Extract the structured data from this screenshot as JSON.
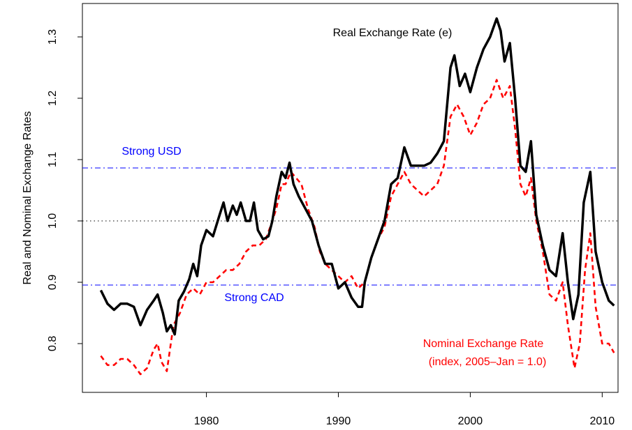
{
  "chart_data": {
    "type": "line",
    "y_label": "Real and Nominal Exchange Rates",
    "xlim": [
      1970.6,
      2011.2
    ],
    "ylim": [
      0.7205,
      1.3545
    ],
    "xticks": [
      1980,
      1990,
      2000,
      2010
    ],
    "yticks": [
      0.8,
      0.9,
      {
        "value": 1,
        "label": "1.0"
      },
      1.1,
      1.2,
      1.3
    ],
    "hlines": [
      {
        "value": 1.0864,
        "label": "Strong USD",
        "color": "#0000ff",
        "style": "dashdot"
      },
      {
        "value": 1.0,
        "color": "#000000",
        "style": "dotted"
      },
      {
        "value": 0.8955,
        "label": "Strong CAD",
        "color": "#0000ff",
        "style": "dashdot"
      }
    ],
    "annotations": [
      {
        "text": "Real Exchange Rate (e)",
        "color": "#000000"
      },
      {
        "text": "Nominal Exchange Rate",
        "color": "#ff0000"
      },
      {
        "text": "(index, 2005–Jan = 1.0)",
        "color": "#ff0000"
      }
    ],
    "series": [
      {
        "color": "#000000",
        "style": "solid",
        "x": [
          1972.0,
          1972.5,
          1973.0,
          1973.5,
          1974.0,
          1974.5,
          1975.0,
          1975.5,
          1976.0,
          1976.3,
          1976.7,
          1977.0,
          1977.3,
          1977.6,
          1977.9,
          1978.3,
          1978.7,
          1979.0,
          1979.3,
          1979.6,
          1980.0,
          1980.5,
          1981.0,
          1981.3,
          1981.6,
          1982.0,
          1982.3,
          1982.6,
          1983.0,
          1983.3,
          1983.6,
          1983.9,
          1984.3,
          1984.7,
          1985.0,
          1985.3,
          1985.7,
          1986.0,
          1986.3,
          1986.6,
          1987.0,
          1987.5,
          1988.0,
          1988.5,
          1989.0,
          1989.5,
          1990.0,
          1990.5,
          1991.0,
          1991.5,
          1991.8,
          1992.0,
          1992.5,
          1993.0,
          1993.5,
          1994.0,
          1994.5,
          1995.0,
          1995.5,
          1996.0,
          1996.5,
          1997.0,
          1997.5,
          1998.0,
          1998.5,
          1998.8,
          1999.2,
          1999.6,
          2000.0,
          2000.5,
          2001.0,
          2001.5,
          2002.0,
          2002.3,
          2002.6,
          2003.0,
          2003.4,
          2003.8,
          2004.2,
          2004.6,
          2005.0,
          2005.5,
          2006.0,
          2006.5,
          2007.0,
          2007.4,
          2007.8,
          2008.2,
          2008.6,
          2009.1,
          2009.5,
          2010.0,
          2010.5,
          2010.9
        ],
        "values": [
          0.887,
          0.865,
          0.855,
          0.865,
          0.865,
          0.86,
          0.83,
          0.855,
          0.87,
          0.88,
          0.85,
          0.82,
          0.83,
          0.815,
          0.87,
          0.885,
          0.905,
          0.93,
          0.91,
          0.96,
          0.985,
          0.975,
          1.01,
          1.03,
          1.0,
          1.025,
          1.01,
          1.03,
          1.0,
          1.0,
          1.03,
          0.985,
          0.97,
          0.975,
          1.0,
          1.04,
          1.08,
          1.07,
          1.095,
          1.06,
          1.04,
          1.02,
          1.0,
          0.96,
          0.93,
          0.93,
          0.89,
          0.9,
          0.875,
          0.86,
          0.86,
          0.9,
          0.94,
          0.97,
          1.0,
          1.06,
          1.07,
          1.12,
          1.09,
          1.09,
          1.09,
          1.095,
          1.11,
          1.13,
          1.25,
          1.27,
          1.22,
          1.24,
          1.21,
          1.25,
          1.28,
          1.3,
          1.33,
          1.31,
          1.26,
          1.29,
          1.2,
          1.09,
          1.08,
          1.13,
          1.01,
          0.96,
          0.92,
          0.91,
          0.98,
          0.9,
          0.84,
          0.88,
          1.03,
          1.08,
          0.95,
          0.9,
          0.87,
          0.862
        ]
      },
      {
        "color": "#ff0000",
        "style": "dashed",
        "x": [
          1972.0,
          1972.5,
          1973.0,
          1973.5,
          1974.0,
          1974.5,
          1975.0,
          1975.5,
          1976.0,
          1976.3,
          1976.6,
          1977.0,
          1977.5,
          1978.0,
          1978.5,
          1979.0,
          1979.5,
          1980.0,
          1980.5,
          1981.0,
          1981.5,
          1982.0,
          1982.5,
          1983.0,
          1983.5,
          1984.0,
          1984.5,
          1985.0,
          1985.3,
          1985.7,
          1986.0,
          1986.4,
          1986.8,
          1987.2,
          1987.7,
          1988.2,
          1988.6,
          1989.0,
          1989.5,
          1990.0,
          1990.5,
          1991.0,
          1991.5,
          1992.0,
          1992.5,
          1993.0,
          1993.5,
          1994.0,
          1994.5,
          1995.0,
          1995.5,
          1996.0,
          1996.5,
          1997.0,
          1997.5,
          1998.0,
          1998.5,
          1999.0,
          1999.5,
          2000.0,
          2000.5,
          2001.0,
          2001.5,
          2002.0,
          2002.5,
          2003.0,
          2003.4,
          2003.8,
          2004.2,
          2004.6,
          2005.0,
          2005.5,
          2006.0,
          2006.5,
          2007.0,
          2007.4,
          2007.9,
          2008.3,
          2008.7,
          2009.1,
          2009.5,
          2010.0,
          2010.5,
          2010.9
        ],
        "values": [
          0.78,
          0.765,
          0.765,
          0.775,
          0.775,
          0.765,
          0.75,
          0.76,
          0.79,
          0.8,
          0.77,
          0.755,
          0.83,
          0.85,
          0.88,
          0.89,
          0.88,
          0.9,
          0.9,
          0.91,
          0.92,
          0.92,
          0.93,
          0.95,
          0.96,
          0.96,
          0.97,
          1.0,
          1.02,
          1.06,
          1.06,
          1.08,
          1.07,
          1.06,
          1.02,
          0.99,
          0.95,
          0.93,
          0.92,
          0.91,
          0.9,
          0.91,
          0.89,
          0.9,
          0.94,
          0.97,
          0.99,
          1.04,
          1.06,
          1.08,
          1.06,
          1.05,
          1.04,
          1.05,
          1.06,
          1.09,
          1.17,
          1.19,
          1.17,
          1.14,
          1.16,
          1.19,
          1.2,
          1.23,
          1.2,
          1.22,
          1.15,
          1.06,
          1.04,
          1.07,
          1.0,
          0.95,
          0.88,
          0.87,
          0.9,
          0.83,
          0.76,
          0.8,
          0.92,
          0.98,
          0.86,
          0.8,
          0.8,
          0.785
        ]
      }
    ]
  }
}
